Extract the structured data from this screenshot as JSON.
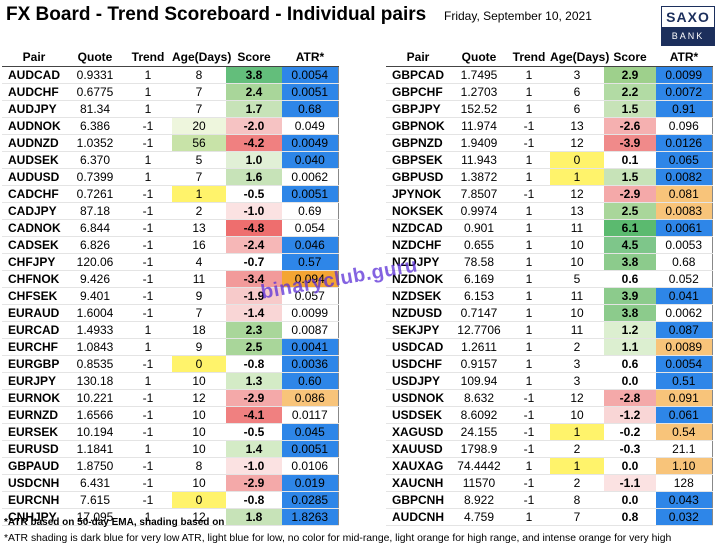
{
  "header": {
    "title": "FX Board - Trend Scoreboard - Individual pairs",
    "date": "Friday, September 10, 2021",
    "logo_top": "SAXO",
    "logo_bottom": "BANK"
  },
  "columns": [
    "Pair",
    "Quote",
    "Trend",
    "Age(Days)",
    "Score",
    "ATR*"
  ],
  "left_rows": [
    {
      "pair": "AUDCAD",
      "quote": "0.9331",
      "trend": "1",
      "age": "8",
      "score": "3.8",
      "atr": "0.0054",
      "group_start": true,
      "score_color": "#63be7b",
      "atr_color": "#2e86e8",
      "age_color": ""
    },
    {
      "pair": "AUDCHF",
      "quote": "0.6775",
      "trend": "1",
      "age": "7",
      "score": "2.4",
      "atr": "0.0051",
      "group_start": false,
      "score_color": "#a9d69a",
      "atr_color": "#2e86e8",
      "age_color": ""
    },
    {
      "pair": "AUDJPY",
      "quote": "81.34",
      "trend": "1",
      "age": "7",
      "score": "1.7",
      "atr": "0.68",
      "group_start": false,
      "score_color": "#c7e3b8",
      "atr_color": "#2e86e8",
      "age_color": ""
    },
    {
      "pair": "AUDNOK",
      "quote": "6.386",
      "trend": "-1",
      "age": "20",
      "score": "-2.0",
      "atr": "0.049",
      "group_start": true,
      "score_color": "#f6c3c3",
      "atr_color": "",
      "age_color": "#eef6dd"
    },
    {
      "pair": "AUDNZD",
      "quote": "1.0352",
      "trend": "-1",
      "age": "56",
      "score": "-4.2",
      "atr": "0.0049",
      "group_start": false,
      "score_color": "#f08080",
      "atr_color": "#2e86e8",
      "age_color": "#c8e3a8"
    },
    {
      "pair": "AUDSEK",
      "quote": "6.370",
      "trend": "1",
      "age": "5",
      "score": "1.0",
      "atr": "0.040",
      "group_start": false,
      "score_color": "#e1f0d6",
      "atr_color": "#2e86e8",
      "age_color": ""
    },
    {
      "pair": "AUDUSD",
      "quote": "0.7399",
      "trend": "1",
      "age": "7",
      "score": "1.6",
      "atr": "0.0062",
      "group_start": true,
      "score_color": "#c7e3b8",
      "atr_color": "",
      "age_color": ""
    },
    {
      "pair": "CADCHF",
      "quote": "0.7261",
      "trend": "-1",
      "age": "1",
      "score": "-0.5",
      "atr": "0.0051",
      "group_start": false,
      "score_color": "",
      "atr_color": "#2e86e8",
      "age_color": "#fff36b"
    },
    {
      "pair": "CADJPY",
      "quote": "87.18",
      "trend": "-1",
      "age": "2",
      "score": "-1.0",
      "atr": "0.69",
      "group_start": false,
      "score_color": "#fbe2e2",
      "atr_color": "",
      "age_color": ""
    },
    {
      "pair": "CADNOK",
      "quote": "6.844",
      "trend": "-1",
      "age": "13",
      "score": "-4.8",
      "atr": "0.054",
      "group_start": true,
      "score_color": "#ee6e6e",
      "atr_color": "",
      "age_color": ""
    },
    {
      "pair": "CADSEK",
      "quote": "6.826",
      "trend": "-1",
      "age": "16",
      "score": "-2.4",
      "atr": "0.046",
      "group_start": false,
      "score_color": "#f6b7b7",
      "atr_color": "#2e86e8",
      "age_color": ""
    },
    {
      "pair": "CHFJPY",
      "quote": "120.06",
      "trend": "-1",
      "age": "4",
      "score": "-0.7",
      "atr": "0.57",
      "group_start": false,
      "score_color": "",
      "atr_color": "#2e86e8",
      "age_color": ""
    },
    {
      "pair": "CHFNOK",
      "quote": "9.426",
      "trend": "-1",
      "age": "11",
      "score": "-3.4",
      "atr": "0.094",
      "group_start": true,
      "score_color": "#f29a9a",
      "atr_color": "#f4a533",
      "age_color": ""
    },
    {
      "pair": "CHFSEK",
      "quote": "9.401",
      "trend": "-1",
      "age": "9",
      "score": "-1.9",
      "atr": "0.057",
      "group_start": false,
      "score_color": "#f7caca",
      "atr_color": "",
      "age_color": ""
    },
    {
      "pair": "EURAUD",
      "quote": "1.6004",
      "trend": "-1",
      "age": "7",
      "score": "-1.4",
      "atr": "0.0099",
      "group_start": false,
      "score_color": "#f9d6d6",
      "atr_color": "",
      "age_color": ""
    },
    {
      "pair": "EURCAD",
      "quote": "1.4933",
      "trend": "1",
      "age": "18",
      "score": "2.3",
      "atr": "0.0087",
      "group_start": true,
      "score_color": "#a9d69a",
      "atr_color": "",
      "age_color": ""
    },
    {
      "pair": "EURCHF",
      "quote": "1.0843",
      "trend": "1",
      "age": "9",
      "score": "2.5",
      "atr": "0.0041",
      "group_start": false,
      "score_color": "#a9d69a",
      "atr_color": "#2e86e8",
      "age_color": ""
    },
    {
      "pair": "EURGBP",
      "quote": "0.8535",
      "trend": "-1",
      "age": "0",
      "score": "-0.8",
      "atr": "0.0036",
      "group_start": false,
      "score_color": "",
      "atr_color": "#2e86e8",
      "age_color": "#fff36b"
    },
    {
      "pair": "EURJPY",
      "quote": "130.18",
      "trend": "1",
      "age": "10",
      "score": "1.3",
      "atr": "0.60",
      "group_start": true,
      "score_color": "#d4ebc6",
      "atr_color": "#2e86e8",
      "age_color": ""
    },
    {
      "pair": "EURNOK",
      "quote": "10.221",
      "trend": "-1",
      "age": "12",
      "score": "-2.9",
      "atr": "0.086",
      "group_start": false,
      "score_color": "#f4a9a9",
      "atr_color": "#f8c47a",
      "age_color": ""
    },
    {
      "pair": "EURNZD",
      "quote": "1.6566",
      "trend": "-1",
      "age": "10",
      "score": "-4.1",
      "atr": "0.0117",
      "group_start": false,
      "score_color": "#f08080",
      "atr_color": "",
      "age_color": ""
    },
    {
      "pair": "EURSEK",
      "quote": "10.194",
      "trend": "-1",
      "age": "10",
      "score": "-0.5",
      "atr": "0.045",
      "group_start": true,
      "score_color": "",
      "atr_color": "#2e86e8",
      "age_color": ""
    },
    {
      "pair": "EURUSD",
      "quote": "1.1841",
      "trend": "1",
      "age": "10",
      "score": "1.4",
      "atr": "0.0051",
      "group_start": false,
      "score_color": "#d4ebc6",
      "atr_color": "#2e86e8",
      "age_color": ""
    },
    {
      "pair": "GBPAUD",
      "quote": "1.8750",
      "trend": "-1",
      "age": "8",
      "score": "-1.0",
      "atr": "0.0106",
      "group_start": false,
      "score_color": "#fbe2e2",
      "atr_color": "",
      "age_color": ""
    },
    {
      "pair": "USDCNH",
      "quote": "6.431",
      "trend": "-1",
      "age": "10",
      "score": "-2.9",
      "atr": "0.019",
      "group_start": true,
      "score_color": "#f4a9a9",
      "atr_color": "#2e86e8",
      "age_color": ""
    },
    {
      "pair": "EURCNH",
      "quote": "7.615",
      "trend": "-1",
      "age": "0",
      "score": "-0.8",
      "atr": "0.0285",
      "group_start": false,
      "score_color": "",
      "atr_color": "#2e86e8",
      "age_color": "#fff36b"
    },
    {
      "pair": "CNHJPY",
      "quote": "17.095",
      "trend": "1",
      "age": "12",
      "score": "1.8",
      "atr": "1.8263",
      "group_start": false,
      "score_color": "#c7e3b8",
      "atr_color": "#2e86e8",
      "age_color": ""
    }
  ],
  "right_rows": [
    {
      "pair": "GBPCAD",
      "quote": "1.7495",
      "trend": "1",
      "age": "3",
      "score": "2.9",
      "atr": "0.0099",
      "group_start": true,
      "score_color": "#9ed08c",
      "atr_color": "#2e86e8",
      "age_color": ""
    },
    {
      "pair": "GBPCHF",
      "quote": "1.2703",
      "trend": "1",
      "age": "6",
      "score": "2.2",
      "atr": "0.0072",
      "group_start": false,
      "score_color": "#b2dba4",
      "atr_color": "#2e86e8",
      "age_color": ""
    },
    {
      "pair": "GBPJPY",
      "quote": "152.52",
      "trend": "1",
      "age": "6",
      "score": "1.5",
      "atr": "0.91",
      "group_start": false,
      "score_color": "#c7e3b8",
      "atr_color": "#2e86e8",
      "age_color": ""
    },
    {
      "pair": "GBPNOK",
      "quote": "11.974",
      "trend": "-1",
      "age": "13",
      "score": "-2.6",
      "atr": "0.096",
      "group_start": true,
      "score_color": "#f5b0b0",
      "atr_color": "",
      "age_color": ""
    },
    {
      "pair": "GBPNZD",
      "quote": "1.9409",
      "trend": "-1",
      "age": "12",
      "score": "-3.9",
      "atr": "0.0126",
      "group_start": false,
      "score_color": "#f08a8a",
      "atr_color": "#2e86e8",
      "age_color": ""
    },
    {
      "pair": "GBPSEK",
      "quote": "11.943",
      "trend": "1",
      "age": "0",
      "score": "0.1",
      "atr": "0.065",
      "group_start": false,
      "score_color": "",
      "atr_color": "#2e86e8",
      "age_color": "#fff36b"
    },
    {
      "pair": "GBPUSD",
      "quote": "1.3872",
      "trend": "1",
      "age": "1",
      "score": "1.5",
      "atr": "0.0082",
      "group_start": true,
      "score_color": "#c7e3b8",
      "atr_color": "#2e86e8",
      "age_color": "#fff36b"
    },
    {
      "pair": "JPYNOK",
      "quote": "7.8507",
      "trend": "-1",
      "age": "12",
      "score": "-2.9",
      "atr": "0.081",
      "group_start": false,
      "score_color": "#f4a9a9",
      "atr_color": "#f8c47a",
      "age_color": ""
    },
    {
      "pair": "NOKSEK",
      "quote": "0.9974",
      "trend": "1",
      "age": "13",
      "score": "2.5",
      "atr": "0.0083",
      "group_start": false,
      "score_color": "#a9d69a",
      "atr_color": "#f8c47a",
      "age_color": ""
    },
    {
      "pair": "NZDCAD",
      "quote": "0.901",
      "trend": "1",
      "age": "11",
      "score": "6.1",
      "atr": "0.0061",
      "group_start": true,
      "score_color": "#5bba6f",
      "atr_color": "#2e86e8",
      "age_color": ""
    },
    {
      "pair": "NZDCHF",
      "quote": "0.655",
      "trend": "1",
      "age": "10",
      "score": "4.5",
      "atr": "0.0053",
      "group_start": false,
      "score_color": "#7ec68a",
      "atr_color": "",
      "age_color": ""
    },
    {
      "pair": "NZDJPY",
      "quote": "78.58",
      "trend": "1",
      "age": "10",
      "score": "3.8",
      "atr": "0.68",
      "group_start": false,
      "score_color": "#8ccb8c",
      "atr_color": "",
      "age_color": ""
    },
    {
      "pair": "NZDNOK",
      "quote": "6.169",
      "trend": "1",
      "age": "5",
      "score": "0.6",
      "atr": "0.052",
      "group_start": true,
      "score_color": "",
      "atr_color": "",
      "age_color": ""
    },
    {
      "pair": "NZDSEK",
      "quote": "6.153",
      "trend": "1",
      "age": "11",
      "score": "3.9",
      "atr": "0.041",
      "group_start": false,
      "score_color": "#8ccb8c",
      "atr_color": "#2e86e8",
      "age_color": ""
    },
    {
      "pair": "NZDUSD",
      "quote": "0.7147",
      "trend": "1",
      "age": "10",
      "score": "3.8",
      "atr": "0.0062",
      "group_start": false,
      "score_color": "#8ccb8c",
      "atr_color": "",
      "age_color": ""
    },
    {
      "pair": "SEKJPY",
      "quote": "12.7706",
      "trend": "1",
      "age": "11",
      "score": "1.2",
      "atr": "0.087",
      "group_start": true,
      "score_color": "#dcefd0",
      "atr_color": "#2e86e8",
      "age_color": ""
    },
    {
      "pair": "USDCAD",
      "quote": "1.2611",
      "trend": "1",
      "age": "2",
      "score": "1.1",
      "atr": "0.0089",
      "group_start": false,
      "score_color": "#dcefd0",
      "atr_color": "#f8c47a",
      "age_color": ""
    },
    {
      "pair": "USDCHF",
      "quote": "0.9157",
      "trend": "1",
      "age": "3",
      "score": "0.6",
      "atr": "0.0054",
      "group_start": false,
      "score_color": "",
      "atr_color": "#2e86e8",
      "age_color": ""
    },
    {
      "pair": "USDJPY",
      "quote": "109.94",
      "trend": "1",
      "age": "3",
      "score": "0.0",
      "atr": "0.51",
      "group_start": true,
      "score_color": "",
      "atr_color": "#2e86e8",
      "age_color": ""
    },
    {
      "pair": "USDNOK",
      "quote": "8.632",
      "trend": "-1",
      "age": "12",
      "score": "-2.8",
      "atr": "0.091",
      "group_start": false,
      "score_color": "#f4a9a9",
      "atr_color": "#f8c47a",
      "age_color": ""
    },
    {
      "pair": "USDSEK",
      "quote": "8.6092",
      "trend": "-1",
      "age": "10",
      "score": "-1.2",
      "atr": "0.061",
      "group_start": false,
      "score_color": "#f9d6d6",
      "atr_color": "#2e86e8",
      "age_color": ""
    },
    {
      "pair": "XAGUSD",
      "quote": "24.155",
      "trend": "-1",
      "age": "1",
      "score": "-0.2",
      "atr": "0.54",
      "group_start": true,
      "score_color": "",
      "atr_color": "#f8c47a",
      "age_color": "#fff36b"
    },
    {
      "pair": "XAUUSD",
      "quote": "1798.9",
      "trend": "-1",
      "age": "2",
      "score": "-0.3",
      "atr": "21.1",
      "group_start": false,
      "score_color": "",
      "atr_color": "",
      "age_color": ""
    },
    {
      "pair": "XAUXAG",
      "quote": "74.4442",
      "trend": "1",
      "age": "1",
      "score": "0.0",
      "atr": "1.10",
      "group_start": false,
      "score_color": "",
      "atr_color": "#f8c47a",
      "age_color": "#fff36b"
    },
    {
      "pair": "XAUCNH",
      "quote": "11570",
      "trend": "-1",
      "age": "2",
      "score": "-1.1",
      "atr": "128",
      "group_start": true,
      "score_color": "#fbe2e2",
      "atr_color": "",
      "age_color": ""
    },
    {
      "pair": "GBPCNH",
      "quote": "8.922",
      "trend": "-1",
      "age": "8",
      "score": "0.0",
      "atr": "0.043",
      "group_start": false,
      "score_color": "",
      "atr_color": "#2e86e8",
      "age_color": ""
    },
    {
      "pair": "AUDCNH",
      "quote": "4.759",
      "trend": "1",
      "age": "7",
      "score": "0.8",
      "atr": "0.032",
      "group_start": false,
      "score_color": "",
      "atr_color": "#2e86e8",
      "age_color": ""
    }
  ],
  "footer": {
    "note1": "*ATR based on 50-day EMA, shading based on co",
    "note2": "*ATR shading is dark blue for very low ATR, light blue for low, no color for mid-range, light orange for high range, and intense orange for very high"
  },
  "watermark": "binaryclub.guru",
  "colors": {
    "atr_very_low": "#2e86e8",
    "atr_high": "#f8c47a",
    "atr_very_high": "#f4a533",
    "age_fresh": "#fff36b",
    "logo_navy": "#1c2f5c"
  }
}
